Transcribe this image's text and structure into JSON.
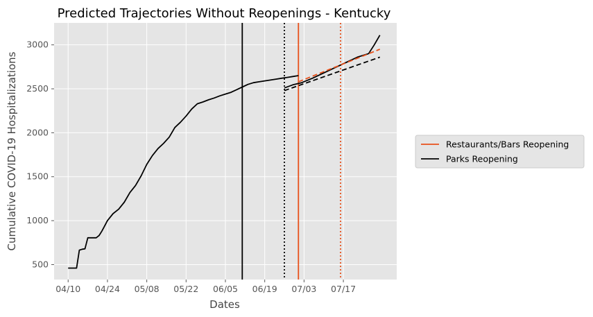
{
  "chart_data": {
    "type": "line",
    "title": "Predicted Trajectories Without Reopenings - Kentucky",
    "xlabel": "Dates",
    "ylabel": "Cumulative COVID-19 Hospitalizations",
    "x_tick_labels": [
      "04/10",
      "04/24",
      "05/08",
      "05/22",
      "06/05",
      "06/19",
      "07/03",
      "07/17"
    ],
    "y_ticks": [
      500,
      1000,
      1500,
      2000,
      2500,
      3000
    ],
    "xlim": [
      "2020-04-05",
      "2020-08-05"
    ],
    "ylim": [
      330,
      3250
    ],
    "grid": true,
    "legend_position": "outside right",
    "series": [
      {
        "name": "Parks Reopening",
        "color": "#000000",
        "style": "solid",
        "x": [
          "2020-04-10",
          "2020-04-11",
          "2020-04-12",
          "2020-04-13",
          "2020-04-14",
          "2020-04-15",
          "2020-04-16",
          "2020-04-17",
          "2020-04-18",
          "2020-04-19",
          "2020-04-20",
          "2020-04-21",
          "2020-04-22",
          "2020-04-23",
          "2020-04-24",
          "2020-04-26",
          "2020-04-28",
          "2020-04-30",
          "2020-05-02",
          "2020-05-04",
          "2020-05-06",
          "2020-05-08",
          "2020-05-10",
          "2020-05-12",
          "2020-05-14",
          "2020-05-16",
          "2020-05-18",
          "2020-05-20",
          "2020-05-22",
          "2020-05-24",
          "2020-05-26",
          "2020-05-28",
          "2020-05-30",
          "2020-06-01",
          "2020-06-03",
          "2020-06-05",
          "2020-06-07",
          "2020-06-09",
          "2020-06-11",
          "2020-06-13",
          "2020-06-15",
          "2020-06-17",
          "2020-06-19",
          "2020-06-21",
          "2020-06-23",
          "2020-06-25",
          "2020-06-27",
          "2020-06-29",
          "2020-07-01"
        ],
        "y": [
          460,
          460,
          460,
          460,
          665,
          675,
          680,
          805,
          805,
          805,
          805,
          830,
          880,
          940,
          1000,
          1080,
          1130,
          1210,
          1320,
          1400,
          1510,
          1640,
          1740,
          1820,
          1880,
          1950,
          2060,
          2120,
          2190,
          2270,
          2330,
          2350,
          2375,
          2395,
          2420,
          2440,
          2460,
          2490,
          2520,
          2550,
          2570,
          2580,
          2590,
          2600,
          2610,
          2620,
          2630,
          2640,
          2650
        ]
      },
      {
        "name": "",
        "color": "#000000",
        "style": "solid",
        "x": [
          "2020-06-26",
          "2020-06-29",
          "2020-07-02",
          "2020-07-06",
          "2020-07-10",
          "2020-07-14",
          "2020-07-18",
          "2020-07-22",
          "2020-07-26",
          "2020-07-28",
          "2020-07-30"
        ],
        "y": [
          2510,
          2545,
          2568,
          2620,
          2680,
          2740,
          2800,
          2860,
          2900,
          3000,
          3110
        ]
      },
      {
        "name": "",
        "color": "#000000",
        "style": "dashed",
        "x": [
          "2020-06-26",
          "2020-07-30"
        ],
        "y": [
          2480,
          2860
        ]
      },
      {
        "name": "",
        "color": "#e8501a",
        "style": "dashed",
        "x": [
          "2020-07-01",
          "2020-07-30"
        ],
        "y": [
          2580,
          2950
        ]
      }
    ],
    "vertical_lines": [
      {
        "name": "Parks Reopening",
        "x": "2020-06-11",
        "color": "#000000",
        "style": "solid"
      },
      {
        "name": "",
        "x": "2020-06-26",
        "color": "#000000",
        "style": "dotted"
      },
      {
        "name": "Restaurants/Bars Reopening",
        "x": "2020-07-01",
        "color": "#e8501a",
        "style": "solid"
      },
      {
        "name": "",
        "x": "2020-07-16",
        "color": "#e8501a",
        "style": "dotted"
      }
    ],
    "legend": [
      {
        "label": "Restaurants/Bars Reopening",
        "color": "#e8501a"
      },
      {
        "label": "Parks Reopening",
        "color": "#000000"
      }
    ]
  }
}
